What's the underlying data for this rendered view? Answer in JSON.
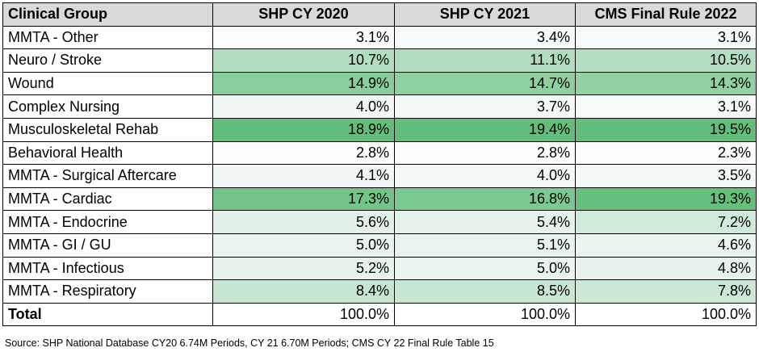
{
  "chart_data": {
    "type": "table",
    "columns": [
      "Clinical Group",
      "SHP CY 2020",
      "SHP CY 2021",
      "CMS Final Rule 2022"
    ],
    "rows": [
      {
        "label": "MMTA - Other",
        "values": [
          "3.1%",
          "3.4%",
          "3.1%"
        ]
      },
      {
        "label": "Neuro / Stroke",
        "values": [
          "10.7%",
          "11.1%",
          "10.5%"
        ]
      },
      {
        "label": "Wound",
        "values": [
          "14.9%",
          "14.7%",
          "14.3%"
        ]
      },
      {
        "label": "Complex Nursing",
        "values": [
          "4.0%",
          "3.7%",
          "3.1%"
        ]
      },
      {
        "label": "Musculoskeletal Rehab",
        "values": [
          "18.9%",
          "19.4%",
          "19.5%"
        ]
      },
      {
        "label": "Behavioral Health",
        "values": [
          "2.8%",
          "2.8%",
          "2.3%"
        ]
      },
      {
        "label": "MMTA - Surgical Aftercare",
        "values": [
          "4.1%",
          "4.0%",
          "3.5%"
        ]
      },
      {
        "label": "MMTA - Cardiac",
        "values": [
          "17.3%",
          "16.8%",
          "19.3%"
        ]
      },
      {
        "label": "MMTA - Endocrine",
        "values": [
          "5.6%",
          "5.4%",
          "7.2%"
        ]
      },
      {
        "label": "MMTA - GI / GU",
        "values": [
          "5.0%",
          "5.1%",
          "4.6%"
        ]
      },
      {
        "label": "MMTA - Infectious",
        "values": [
          "5.2%",
          "5.0%",
          "4.8%"
        ]
      },
      {
        "label": "MMTA - Respiratory",
        "values": [
          "8.4%",
          "8.5%",
          "7.8%"
        ]
      }
    ],
    "total": {
      "label": "Total",
      "values": [
        "100.0%",
        "100.0%",
        "100.0%"
      ]
    },
    "color_scale": {
      "low": "#FCFCFF",
      "high": "#63BE7B"
    }
  },
  "source": "Source: SHP National Database CY20 6.74M Periods, CY 21 6.70M Periods; CMS CY 22 Final Rule Table 15"
}
